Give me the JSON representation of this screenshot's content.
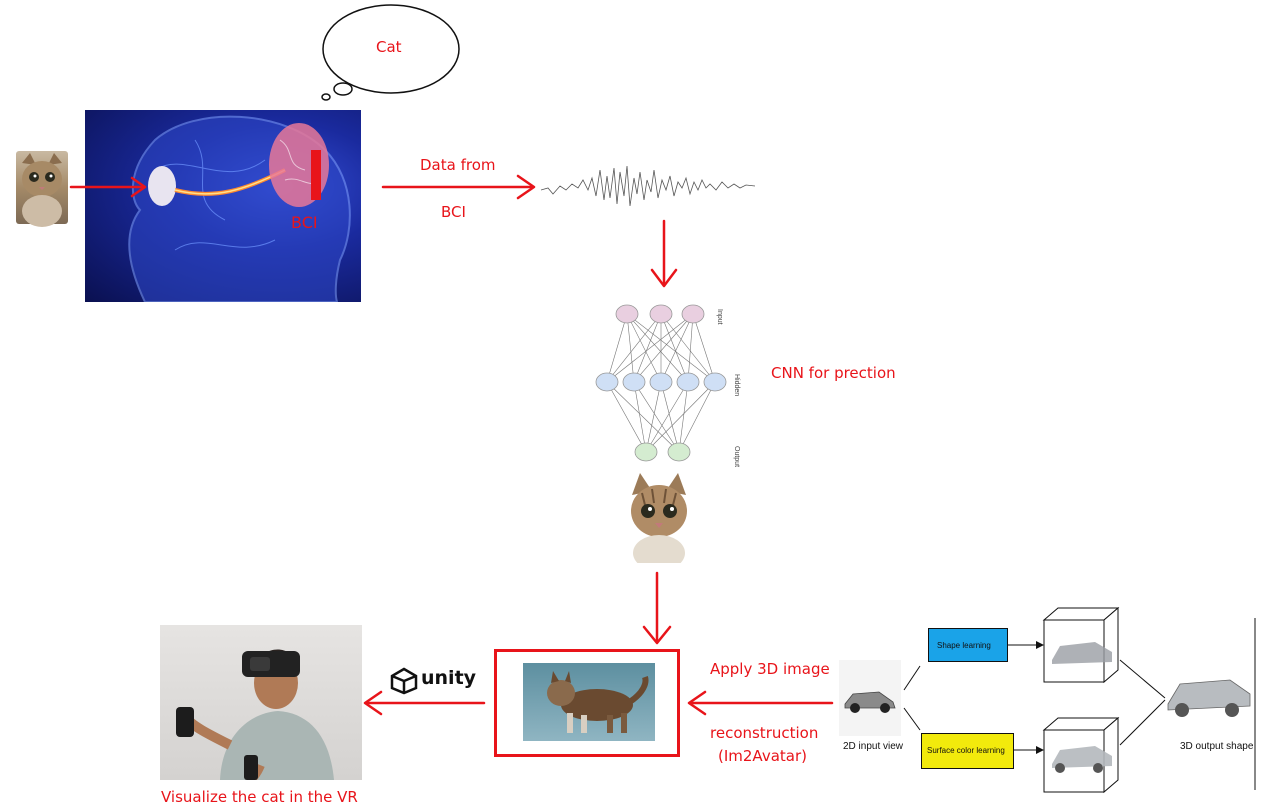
{
  "thought_bubble": {
    "text": "Cat"
  },
  "brain_panel": {
    "bci_label": "BCI"
  },
  "labels": {
    "data_from_line1": "Data from",
    "data_from_line2": "BCI",
    "cnn": "CNN for prection",
    "apply_line1": "Apply 3D image",
    "apply_line2": "reconstruction",
    "apply_line3": "(Im2Avatar)",
    "visualize": "Visualize the cat in the VR"
  },
  "unity_logo": {
    "text": "unity"
  },
  "network": {
    "layer_labels": [
      "Input",
      "Hidden",
      "Output"
    ],
    "input_nodes": 3,
    "hidden_nodes": 5,
    "output_nodes": 2
  },
  "im2avatar": {
    "input_caption": "2D input view",
    "shape_box": "Shape learning",
    "color_box": "Surface color learning",
    "output_caption": "3D output shape"
  },
  "colors": {
    "accent_red": "#e8141a",
    "shape_box": "#1aa3e8",
    "color_box": "#f2ea0c",
    "input_node": "#e9cfe0",
    "hidden_node": "#cfdff5",
    "output_node": "#d4ecd0"
  }
}
